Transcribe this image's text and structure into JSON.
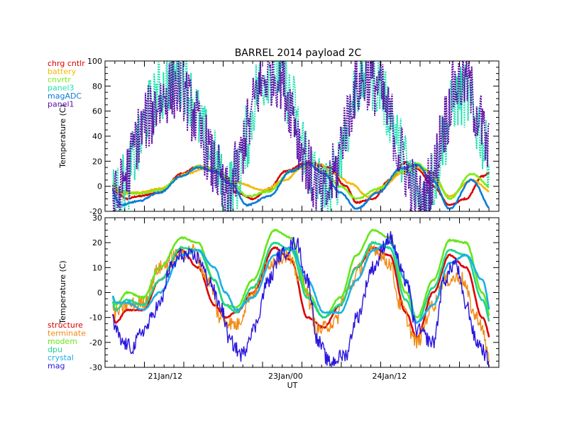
{
  "title": "BARREL 2014 payload 2C",
  "chart_data": [
    {
      "type": "line",
      "ylabel": "Temperature (C)",
      "ylim": [
        -20,
        100
      ],
      "yticks": [
        -20,
        0,
        20,
        40,
        60,
        80,
        100
      ],
      "xlim": [
        0,
        3.6
      ],
      "legend_position": "top-left",
      "series": [
        {
          "name": "chrg cntlr",
          "color": "#dd0000",
          "style": "smooth",
          "x": [
            0,
            0.1,
            0.2,
            0.3,
            0.5,
            0.7,
            0.85,
            1.0,
            1.1,
            1.2,
            1.35,
            1.5,
            1.65,
            1.85,
            2.05,
            2.2,
            2.3,
            2.45,
            2.6,
            2.75,
            2.85,
            3.0,
            3.15,
            3.3,
            3.45,
            3.55
          ],
          "y": [
            12,
            -5,
            -10,
            -8,
            -5,
            10,
            16,
            14,
            5,
            -5,
            -10,
            -2,
            12,
            19,
            15,
            0,
            -13,
            -10,
            5,
            19,
            14,
            0,
            -15,
            -10,
            8,
            13
          ]
        },
        {
          "name": "battery",
          "color": "#f5b800",
          "style": "smooth",
          "x": [
            0,
            0.15,
            0.3,
            0.5,
            0.75,
            0.9,
            1.05,
            1.2,
            1.45,
            1.65,
            1.8,
            1.95,
            2.1,
            2.25,
            2.4,
            2.55,
            2.7,
            2.85,
            3.0,
            3.15,
            3.35,
            3.55
          ],
          "y": [
            9,
            -6,
            -5,
            -2,
            10,
            14,
            10,
            3,
            -3,
            5,
            15,
            18,
            10,
            2,
            -8,
            0,
            10,
            15,
            6,
            -8,
            5,
            -5
          ]
        },
        {
          "name": "cnvrtr",
          "color": "#7aee1a",
          "style": "smooth",
          "x": [
            0,
            0.15,
            0.3,
            0.5,
            0.7,
            0.85,
            1.0,
            1.15,
            1.3,
            1.5,
            1.7,
            1.85,
            2.0,
            2.15,
            2.3,
            2.5,
            2.7,
            2.85,
            3.0,
            3.15,
            3.35,
            3.55
          ],
          "y": [
            10,
            -4,
            -6,
            -3,
            8,
            16,
            14,
            4,
            -8,
            -4,
            12,
            18,
            12,
            0,
            -10,
            -2,
            12,
            18,
            10,
            -10,
            10,
            -2
          ]
        },
        {
          "name": "panel3",
          "color": "#21e1b1",
          "style": "noisy",
          "x": [
            0,
            0.1,
            0.2,
            0.3,
            0.4,
            0.5,
            0.6,
            0.7,
            0.8,
            0.9,
            1.0,
            1.1,
            1.2,
            1.3,
            1.4,
            1.5,
            1.6,
            1.7,
            1.8,
            1.9,
            2.0,
            2.1,
            2.2,
            2.3,
            2.4,
            2.5,
            2.6,
            2.7,
            2.8,
            2.9,
            3.0,
            3.1,
            3.2,
            3.3,
            3.4,
            3.5,
            3.6
          ],
          "y": [
            10,
            -10,
            5,
            30,
            60,
            75,
            85,
            88,
            70,
            40,
            20,
            -5,
            5,
            40,
            80,
            92,
            90,
            70,
            35,
            10,
            -5,
            5,
            45,
            80,
            88,
            82,
            60,
            30,
            5,
            -12,
            5,
            40,
            70,
            72,
            50,
            25,
            8
          ]
        },
        {
          "name": "magADC",
          "color": "#0a7dd6",
          "style": "smooth",
          "x": [
            0,
            0.15,
            0.3,
            0.5,
            0.7,
            0.85,
            1.0,
            1.15,
            1.3,
            1.5,
            1.7,
            1.85,
            2.0,
            2.15,
            2.3,
            2.5,
            2.7,
            2.85,
            3.0,
            3.15,
            3.35,
            3.55
          ],
          "y": [
            8,
            -15,
            -12,
            -5,
            8,
            15,
            12,
            2,
            -15,
            -8,
            12,
            18,
            10,
            -5,
            -18,
            -5,
            14,
            17,
            4,
            -18,
            5,
            -20
          ]
        },
        {
          "name": "panel1",
          "color": "#5d0ea5",
          "style": "noisy",
          "x": [
            0,
            0.1,
            0.2,
            0.3,
            0.4,
            0.5,
            0.6,
            0.7,
            0.8,
            0.9,
            1.0,
            1.1,
            1.2,
            1.3,
            1.4,
            1.5,
            1.6,
            1.7,
            1.8,
            1.9,
            2.0,
            2.1,
            2.2,
            2.3,
            2.4,
            2.5,
            2.6,
            2.7,
            2.8,
            2.9,
            3.0,
            3.1,
            3.2,
            3.3,
            3.4,
            3.5,
            3.6
          ],
          "y": [
            10,
            -12,
            10,
            40,
            55,
            68,
            78,
            80,
            60,
            35,
            15,
            -10,
            10,
            45,
            78,
            90,
            88,
            65,
            30,
            5,
            -10,
            10,
            50,
            80,
            86,
            80,
            55,
            25,
            0,
            -15,
            10,
            50,
            80,
            85,
            60,
            30,
            10
          ]
        }
      ]
    },
    {
      "type": "line",
      "xlabel": "UT",
      "ylabel": "Temperature (C)",
      "ylim": [
        -30,
        30
      ],
      "yticks": [
        -30,
        -20,
        -10,
        0,
        10,
        20,
        30
      ],
      "xlim": [
        0,
        3.6
      ],
      "xticks": [
        {
          "x": 0.55,
          "label": "21Jan/12"
        },
        {
          "x": 1.65,
          "label": "23Jan/00"
        },
        {
          "x": 2.6,
          "label": "24Jan/12"
        }
      ],
      "legend_position": "bottom-left",
      "series": [
        {
          "name": "structure",
          "color": "#dd0000",
          "style": "smooth",
          "x": [
            0,
            0.1,
            0.2,
            0.35,
            0.5,
            0.7,
            0.85,
            1.0,
            1.1,
            1.2,
            1.35,
            1.55,
            1.7,
            1.85,
            2.0,
            2.15,
            2.3,
            2.45,
            2.6,
            2.75,
            2.85,
            3.0,
            3.15,
            3.3,
            3.45,
            3.55
          ],
          "y": [
            7,
            -12,
            -7,
            -7,
            5,
            17,
            10,
            -5,
            -10,
            -8,
            0,
            18,
            13,
            -10,
            -14,
            -5,
            10,
            18,
            15,
            -8,
            -18,
            0,
            15,
            10,
            -10,
            -22
          ]
        },
        {
          "name": "terminate",
          "color": "#f08a12",
          "style": "noisy",
          "x": [
            0,
            0.1,
            0.2,
            0.35,
            0.5,
            0.65,
            0.8,
            0.95,
            1.05,
            1.2,
            1.35,
            1.5,
            1.65,
            1.8,
            1.95,
            2.1,
            2.2,
            2.35,
            2.45,
            2.6,
            2.7,
            2.85,
            3.0,
            3.1,
            3.25,
            3.4,
            3.55
          ],
          "y": [
            3,
            -8,
            -5,
            -4,
            10,
            15,
            17,
            5,
            -10,
            -13,
            0,
            12,
            15,
            5,
            -15,
            -12,
            0,
            10,
            18,
            12,
            -5,
            -20,
            -5,
            5,
            6,
            -10,
            -30
          ]
        },
        {
          "name": "modem",
          "color": "#66e619",
          "style": "smooth",
          "x": [
            0,
            0.1,
            0.2,
            0.35,
            0.5,
            0.7,
            0.85,
            1.0,
            1.1,
            1.2,
            1.35,
            1.55,
            1.7,
            1.85,
            2.0,
            2.15,
            2.3,
            2.45,
            2.6,
            2.75,
            2.85,
            3.0,
            3.15,
            3.3,
            3.45,
            3.55
          ],
          "y": [
            13,
            -5,
            0,
            -2,
            10,
            22,
            20,
            5,
            -5,
            -6,
            5,
            25,
            22,
            0,
            -10,
            -2,
            15,
            25,
            22,
            0,
            -10,
            5,
            21,
            20,
            0,
            -14
          ]
        },
        {
          "name": "dpu",
          "color": "#1ed68c",
          "style": "smooth",
          "x": [
            0,
            0.1,
            0.2,
            0.35,
            0.5,
            0.7,
            0.85,
            1.0,
            1.1,
            1.2,
            1.35,
            1.55,
            1.7,
            1.85,
            2.0,
            2.15,
            2.3,
            2.45,
            2.6,
            2.75,
            2.85,
            3.0,
            3.15,
            3.3,
            3.45,
            3.55
          ],
          "y": [
            12,
            -7,
            -3,
            -5,
            5,
            18,
            17,
            5,
            -5,
            -8,
            2,
            20,
            17,
            -2,
            -10,
            -5,
            10,
            20,
            18,
            -3,
            -12,
            2,
            17,
            15,
            -3,
            -16
          ]
        },
        {
          "name": "crystal",
          "color": "#1bb0e6",
          "style": "smooth",
          "x": [
            0,
            0.1,
            0.2,
            0.35,
            0.5,
            0.7,
            0.85,
            1.0,
            1.1,
            1.2,
            1.35,
            1.55,
            1.7,
            1.85,
            2.0,
            2.15,
            2.3,
            2.45,
            2.6,
            2.75,
            2.85,
            3.0,
            3.15,
            3.3,
            3.45,
            3.55
          ],
          "y": [
            10,
            -4,
            -4,
            -7,
            0,
            15,
            17,
            10,
            0,
            -7,
            -2,
            15,
            18,
            5,
            -8,
            -8,
            5,
            17,
            20,
            5,
            -12,
            -5,
            12,
            15,
            5,
            -13
          ]
        },
        {
          "name": "mag",
          "color": "#2a16dd",
          "style": "noisy",
          "x": [
            0,
            0.1,
            0.15,
            0.25,
            0.35,
            0.5,
            0.6,
            0.7,
            0.85,
            0.95,
            1.05,
            1.15,
            1.25,
            1.35,
            1.5,
            1.6,
            1.75,
            1.85,
            1.95,
            2.05,
            2.2,
            2.3,
            2.45,
            2.6,
            2.75,
            2.85,
            3.0,
            3.1,
            3.2,
            3.3,
            3.4,
            3.55
          ],
          "y": [
            5,
            -15,
            -20,
            -22,
            -15,
            -5,
            10,
            15,
            14,
            5,
            -5,
            -20,
            -25,
            -15,
            5,
            15,
            20,
            5,
            -20,
            -28,
            -25,
            -10,
            10,
            22,
            5,
            -15,
            -20,
            5,
            12,
            -5,
            -20,
            -30
          ]
        }
      ]
    }
  ]
}
